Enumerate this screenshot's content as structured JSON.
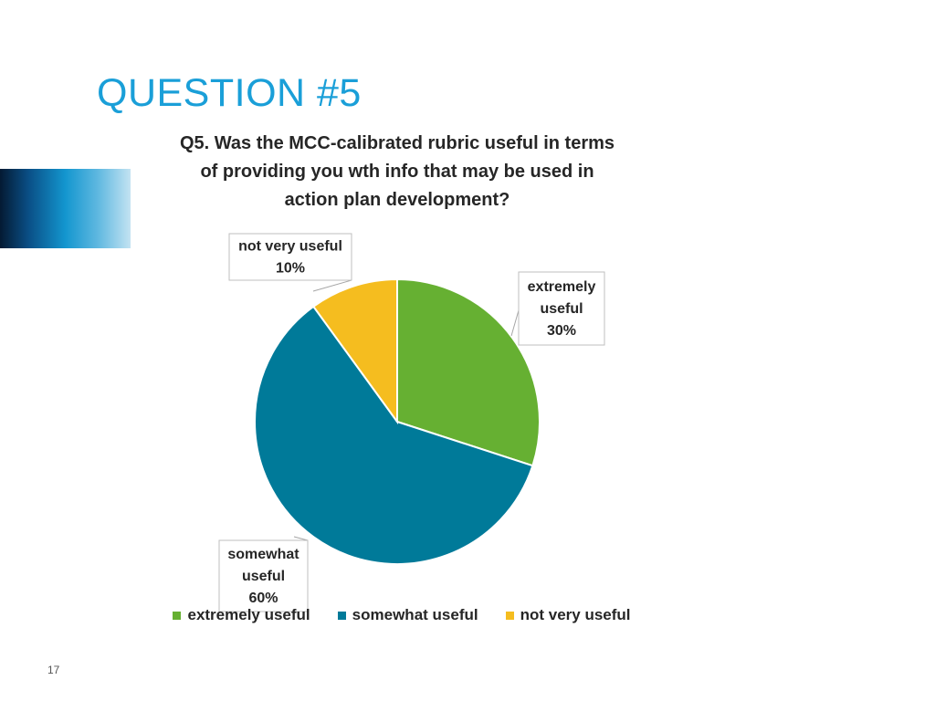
{
  "slide": {
    "title": "QUESTION #5",
    "number": "17"
  },
  "colors": {
    "accent_title": "#1a9fd8",
    "extremely_useful": "#66b032",
    "somewhat_useful": "#007a99",
    "not_very_useful": "#f5bd1f"
  },
  "chart_data": {
    "type": "pie",
    "title": "Q5. Was the MCC-calibrated rubric useful in terms of providing you wth info that may be used in action plan development?",
    "title_lines": [
      "Q5. Was the MCC-calibrated rubric useful in terms",
      "of providing you wth info that may be used in",
      "action plan development?"
    ],
    "categories": [
      "extremely useful",
      "somewhat useful",
      "not very useful"
    ],
    "values": [
      30,
      60,
      10
    ],
    "data_labels": [
      {
        "category_lines": [
          "extremely",
          "useful"
        ],
        "value_text": "30%"
      },
      {
        "category_lines": [
          "somewhat",
          "useful"
        ],
        "value_text": "60%"
      },
      {
        "category_lines": [
          "not very useful"
        ],
        "value_text": "10%"
      }
    ],
    "colors": [
      "#66b032",
      "#007a99",
      "#f5bd1f"
    ],
    "legend_position": "bottom"
  }
}
